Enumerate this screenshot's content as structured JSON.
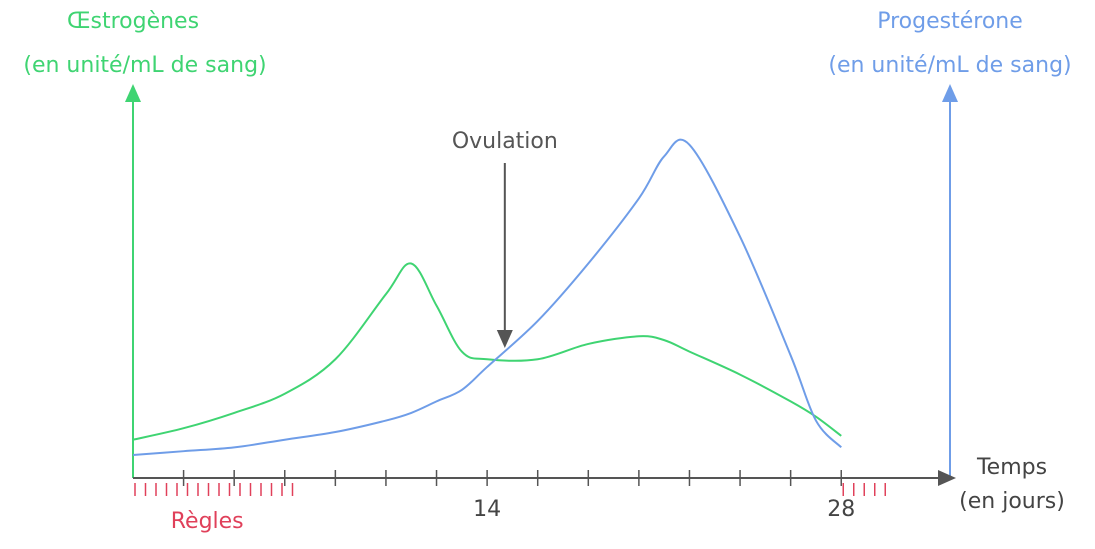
{
  "chart_data": {
    "type": "line",
    "xlabel": "Temps",
    "xlabel_unit": "(en jours)",
    "ylabel": "(en unité/mL de sang)",
    "y2label": "(en unité/mL de sang)",
    "x": [
      0,
      2,
      4,
      6,
      8,
      10,
      11,
      12,
      13,
      14,
      16,
      18,
      20,
      21,
      22,
      24,
      26,
      27,
      28
    ],
    "series": [
      {
        "name": "Œstrogènes",
        "color": "#3fd472",
        "values": [
          10,
          13,
          17,
          22,
          31,
          48,
          56,
          45,
          33,
          31,
          31,
          35,
          37,
          36,
          33,
          27,
          20,
          16,
          11
        ]
      },
      {
        "name": "Progestérone",
        "color": "#6f9de8",
        "axis": "y2",
        "values": [
          6,
          7,
          8,
          10,
          12,
          15,
          17,
          20,
          23,
          29,
          41,
          56,
          73,
          84,
          87,
          63,
          32,
          15,
          8
        ]
      }
    ],
    "xlim": [
      0,
      32.3
    ],
    "ylim": [
      0,
      100
    ],
    "y2lim": [
      0,
      100
    ],
    "xticks": [
      14,
      28
    ],
    "x_minor_ticks": [
      2,
      4,
      6,
      8,
      10,
      12,
      16,
      18,
      20,
      22,
      24,
      26
    ],
    "annotations": [
      {
        "text": "Ovulation",
        "x": 14.7
      }
    ],
    "periods": [
      {
        "label": "Règles",
        "from": 0,
        "to": 6.5,
        "color": "#e0405a"
      },
      {
        "from": 28,
        "to": 30,
        "color": "#e0405a"
      }
    ]
  }
}
